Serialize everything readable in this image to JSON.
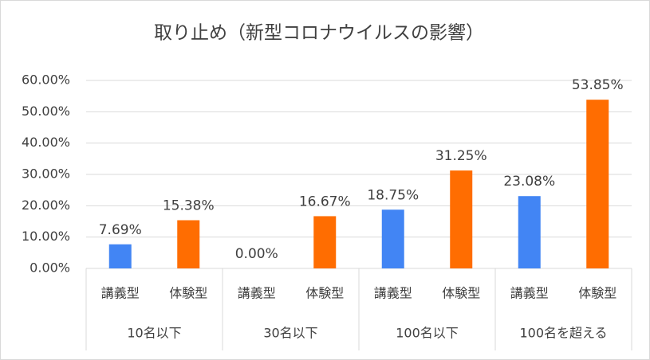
{
  "chart_data": {
    "type": "bar",
    "title": "取り止め（新型コロナウイルスの影響）",
    "categories": [
      "講義型",
      "体験型",
      "講義型",
      "体験型",
      "講義型",
      "体験型",
      "講義型",
      "体験型"
    ],
    "groups": [
      "10名以下",
      "30名以下",
      "100名以下",
      "100名を超える"
    ],
    "values": [
      7.69,
      15.38,
      0,
      16.67,
      18.75,
      31.25,
      23.08,
      53.85
    ],
    "value_labels": [
      "7.69%",
      "15.38%",
      "0.00%",
      "16.67%",
      "18.75%",
      "31.25%",
      "23.08%",
      "53.85%"
    ],
    "colors": [
      "#4285f4",
      "#ff6d01",
      "#4285f4",
      "#ff6d01",
      "#4285f4",
      "#ff6d01",
      "#4285f4",
      "#ff6d01"
    ],
    "ylim": [
      0,
      60
    ],
    "yticks": [
      {
        "value": 0,
        "label": "0.00%"
      },
      {
        "value": 10,
        "label": "10.00%"
      },
      {
        "value": 20,
        "label": "20.00%"
      },
      {
        "value": 30,
        "label": "30.00%"
      },
      {
        "value": 40,
        "label": "40.00%"
      },
      {
        "value": 50,
        "label": "50.00%"
      },
      {
        "value": 60,
        "label": "60.00%"
      }
    ],
    "grid": true
  }
}
